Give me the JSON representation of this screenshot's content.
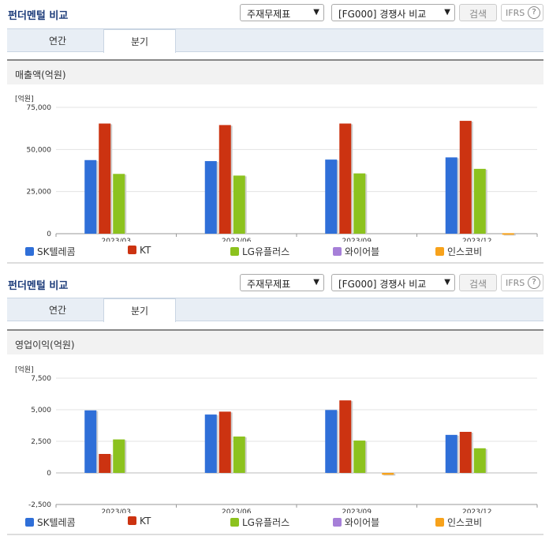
{
  "panels": [
    {
      "header_title": "펀더멘털 비교",
      "select1": "주재무제표",
      "select2": "[FG000] 경쟁사 비교",
      "search_label": "검색",
      "ifrs_label": "IFRS",
      "help_label": "?",
      "tabs": [
        "연간",
        "분기"
      ],
      "active_tab": 1,
      "chart_title": "매출액(억원)",
      "unit_label": "[억원]"
    },
    {
      "header_title": "펀더멘털 비교",
      "select1": "주재무제표",
      "select2": "[FG000] 경쟁사 비교",
      "search_label": "검색",
      "ifrs_label": "IFRS",
      "help_label": "?",
      "tabs": [
        "연간",
        "분기"
      ],
      "active_tab": 1,
      "chart_title": "영업이익(억원)",
      "unit_label": "[억원]"
    }
  ],
  "colors": {
    "SK텔레콤": "#2f6fd8",
    "KT": "#cc3311",
    "LG유플러스": "#8cc21e",
    "와이어블": "#a67fd8",
    "인스코비": "#f7a21b"
  },
  "chart_data": [
    {
      "type": "bar",
      "title": "매출액(억원)",
      "ylabel": "[억원]",
      "categories": [
        "2023/03",
        "2023/06",
        "2023/09",
        "2023/12"
      ],
      "ylim": [
        0,
        75000
      ],
      "yticks": [
        "0",
        "25,000",
        "50,000",
        "75,000"
      ],
      "ytick_values": [
        0,
        25000,
        50000,
        75000
      ],
      "series": [
        {
          "name": "SK텔레콤",
          "values": [
            43700,
            43100,
            44000,
            45300
          ]
        },
        {
          "name": "KT",
          "values": [
            65400,
            64500,
            65400,
            67000
          ]
        },
        {
          "name": "LG유플러스",
          "values": [
            35500,
            34500,
            35800,
            38500
          ]
        },
        {
          "name": "와이어블",
          "values": [
            0,
            0,
            0,
            0
          ]
        },
        {
          "name": "인스코비",
          "values": [
            0,
            0,
            0,
            300
          ]
        }
      ]
    },
    {
      "type": "bar",
      "title": "영업이익(억원)",
      "ylabel": "[억원]",
      "categories": [
        "2023/03",
        "2023/06",
        "2023/09",
        "2023/12"
      ],
      "ylim": [
        -2500,
        7500
      ],
      "yticks": [
        "-2,500",
        "0",
        "2,500",
        "5,000",
        "7,500"
      ],
      "ytick_values": [
        -2500,
        0,
        2500,
        5000,
        7500
      ],
      "series": [
        {
          "name": "SK텔레콤",
          "values": [
            4950,
            4620,
            4980,
            3010
          ]
        },
        {
          "name": "KT",
          "values": [
            1500,
            4850,
            5740,
            3250
          ]
        },
        {
          "name": "LG유플러스",
          "values": [
            2650,
            2880,
            2560,
            1950
          ]
        },
        {
          "name": "와이어블",
          "values": [
            0,
            0,
            0,
            0
          ]
        },
        {
          "name": "인스코비",
          "values": [
            0,
            0,
            -150,
            0
          ]
        }
      ]
    }
  ]
}
